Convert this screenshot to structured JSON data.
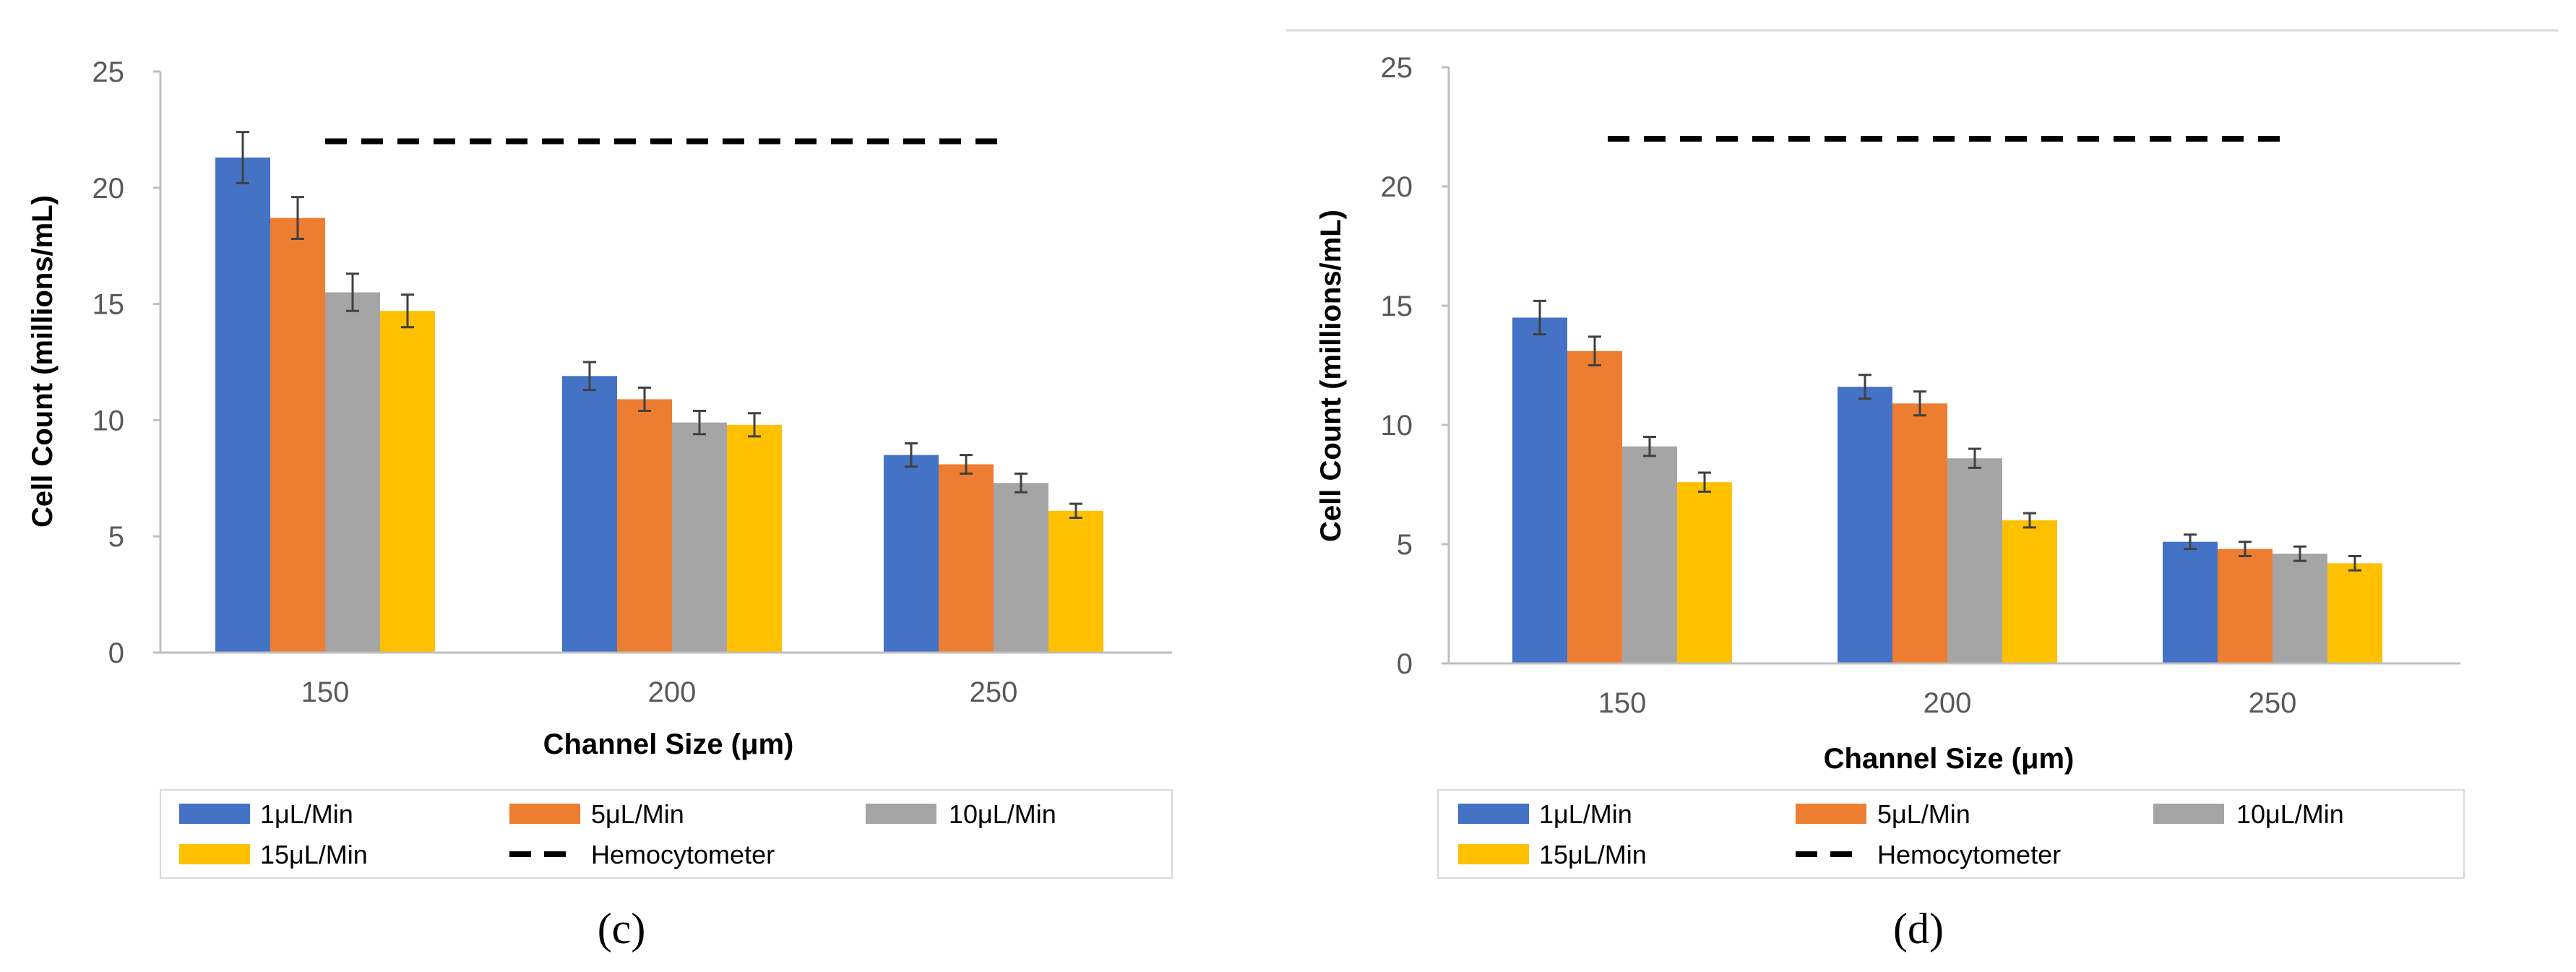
{
  "chart_data": [
    {
      "type": "bar",
      "panel": "c",
      "categories": [
        "150",
        "200",
        "250"
      ],
      "series": [
        {
          "name": "1μL/Min",
          "color": "#4472C4",
          "values": [
            21.3,
            11.9,
            8.5
          ],
          "errors": [
            1.1,
            0.6,
            0.5
          ]
        },
        {
          "name": "5μL/Min",
          "color": "#ED7D31",
          "values": [
            18.7,
            10.9,
            8.1
          ],
          "errors": [
            0.9,
            0.5,
            0.4
          ]
        },
        {
          "name": "10μL/Min",
          "color": "#A5A5A5",
          "values": [
            15.5,
            9.9,
            7.3
          ],
          "errors": [
            0.8,
            0.5,
            0.4
          ]
        },
        {
          "name": "15μL/Min",
          "color": "#FFC000",
          "values": [
            14.7,
            9.8,
            6.1
          ],
          "errors": [
            0.7,
            0.5,
            0.3
          ]
        }
      ],
      "reference_line": {
        "name": "Hemocytometer",
        "value": 22,
        "color": "#000000"
      },
      "xlabel": "Channel Size (μm)",
      "ylabel": "Cell Count (millions/mL)",
      "ylim": [
        0,
        25
      ],
      "yticks": [
        "0",
        "5",
        "10",
        "15",
        "20",
        "25"
      ],
      "legend_position": "bottom"
    },
    {
      "type": "bar",
      "panel": "d",
      "categories": [
        "150",
        "200",
        "250"
      ],
      "series": [
        {
          "name": "1μL/Min",
          "color": "#4472C4",
          "values": [
            14.5,
            11.6,
            5.1
          ],
          "errors": [
            0.7,
            0.5,
            0.3
          ]
        },
        {
          "name": "5μL/Min",
          "color": "#ED7D31",
          "values": [
            13.1,
            10.9,
            4.8
          ],
          "errors": [
            0.6,
            0.5,
            0.3
          ]
        },
        {
          "name": "10μL/Min",
          "color": "#A5A5A5",
          "values": [
            9.1,
            8.6,
            4.6
          ],
          "errors": [
            0.4,
            0.4,
            0.3
          ]
        },
        {
          "name": "15μL/Min",
          "color": "#FFC000",
          "values": [
            7.6,
            6.0,
            4.2
          ],
          "errors": [
            0.4,
            0.3,
            0.3
          ]
        }
      ],
      "reference_line": {
        "name": "Hemocytometer",
        "value": 22,
        "color": "#000000"
      },
      "xlabel": "Channel Size (μm)",
      "ylabel": "Cell Count (millions/mL)",
      "ylim": [
        0,
        25
      ],
      "yticks": [
        "0",
        "5",
        "10",
        "15",
        "20",
        "25"
      ],
      "legend_position": "bottom"
    }
  ],
  "labels": {
    "c": "(c)",
    "d": "(d)"
  }
}
